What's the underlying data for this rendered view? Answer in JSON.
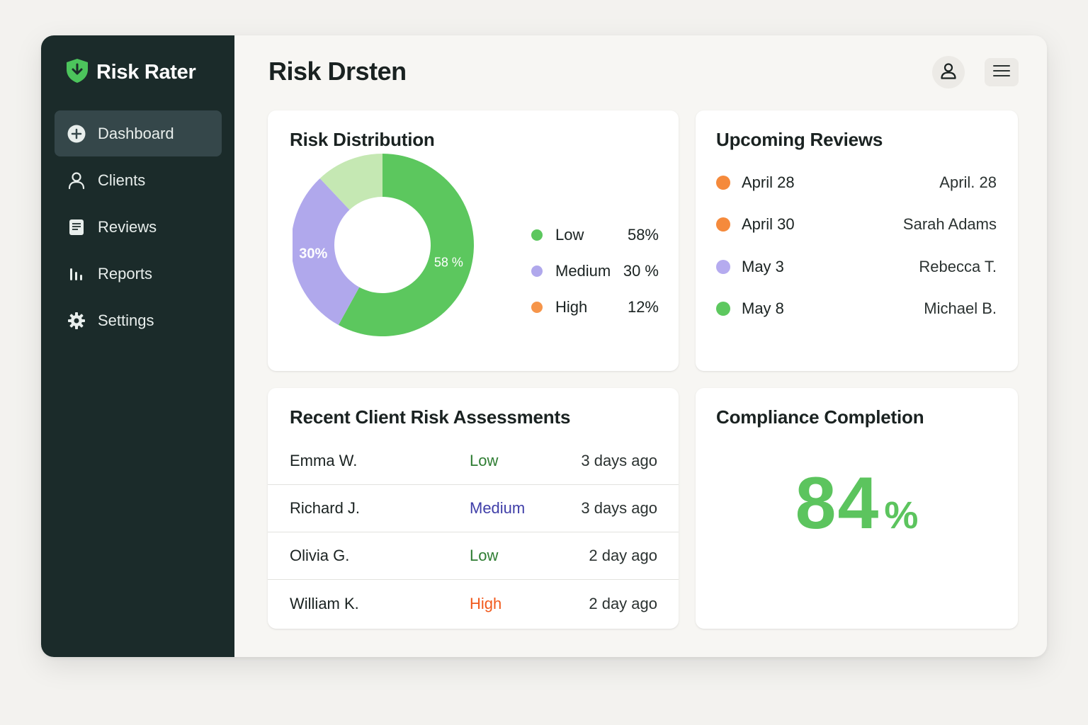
{
  "app": {
    "name": "Risk Rater",
    "page_title": "Risk Drsten"
  },
  "sidebar": {
    "items": [
      {
        "label": "Dashboard",
        "icon": "plus-circle-icon",
        "active": true
      },
      {
        "label": "Clients",
        "icon": "user-icon"
      },
      {
        "label": "Reviews",
        "icon": "document-icon"
      },
      {
        "label": "Reports",
        "icon": "bar-chart-icon"
      },
      {
        "label": "Settings",
        "icon": "gear-icon"
      }
    ]
  },
  "header": {
    "profile_icon": "user-icon",
    "menu_icon": "hamburger-icon"
  },
  "risk_distribution": {
    "title": "Risk Distribution",
    "slice_labels": {
      "low": "58 %",
      "medium": "30%"
    },
    "legend": [
      {
        "label": "Low",
        "value": "58%",
        "color": "#5cc75e"
      },
      {
        "label": "Medium",
        "value": "30 %",
        "color": "#b0a8ec"
      },
      {
        "label": "High",
        "value": "12%",
        "color": "#f6954a"
      }
    ]
  },
  "chart_data": {
    "type": "pie",
    "categories": [
      "Low",
      "Medium",
      "High"
    ],
    "values": [
      58,
      30,
      12
    ],
    "colors": [
      "#5cc75e",
      "#b0a8ec",
      "#c5e8b3"
    ],
    "title": "Risk Distribution"
  },
  "upcoming_reviews": {
    "title": "Upcoming Reviews",
    "items": [
      {
        "date": "April 28",
        "name": "April. 28",
        "color": "#f58a3c"
      },
      {
        "date": "April 30",
        "name": "Sarah Adams",
        "color": "#f58a3c"
      },
      {
        "date": "May 3",
        "name": "Rebecca  T.",
        "color": "#b5abef"
      },
      {
        "date": "May 8",
        "name": "Michael B.",
        "color": "#5dc85f"
      }
    ]
  },
  "recent_assessments": {
    "title": "Recent Client Risk Assessments",
    "rows": [
      {
        "name": "Emma W.",
        "risk": "Low",
        "time": "3 days ago",
        "color": "#2e7d32"
      },
      {
        "name": "Richard J.",
        "risk": "Medium",
        "time": "3 days ago",
        "color": "#3f3ea8"
      },
      {
        "name": "Olivia G.",
        "risk": "Low",
        "time": "2 day ago",
        "color": "#2e7d32"
      },
      {
        "name": "William K.",
        "risk": "High",
        "time": "2 day ago",
        "color": "#f15a1d"
      }
    ]
  },
  "compliance": {
    "title": "Compliance Completion",
    "value": "84",
    "unit": "%",
    "color": "#5cc45e"
  }
}
